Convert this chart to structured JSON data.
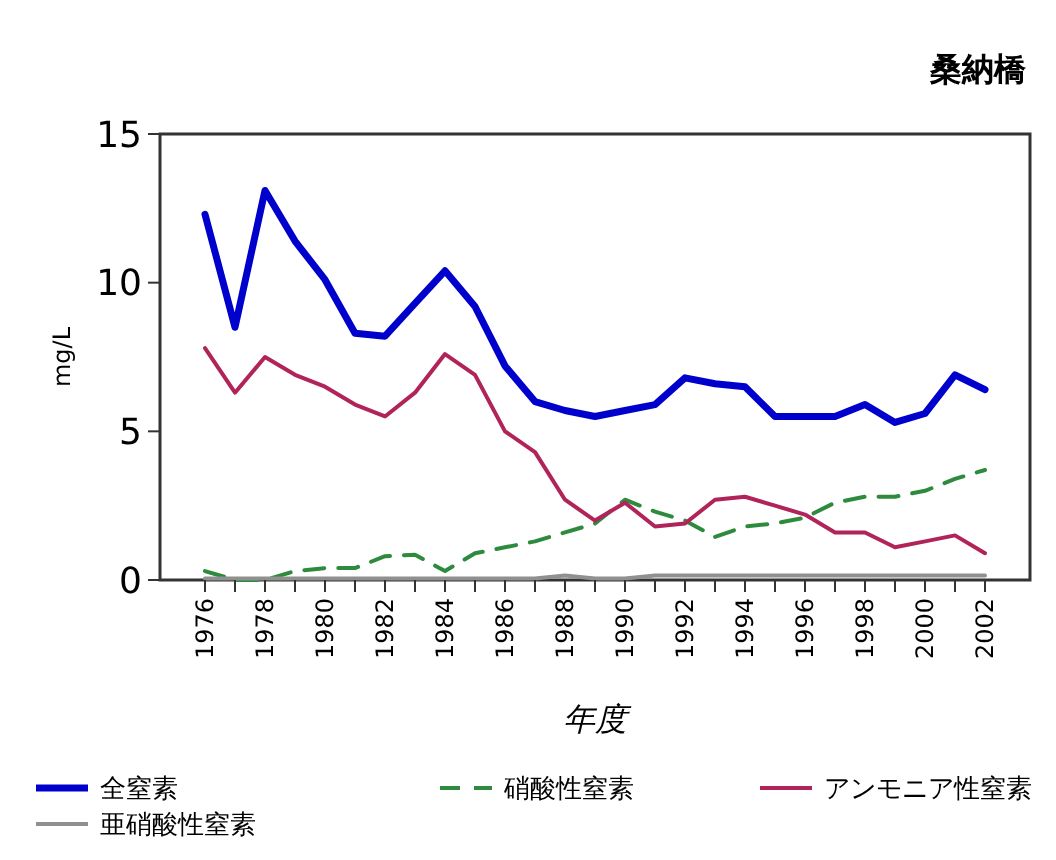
{
  "chart_data": {
    "type": "line",
    "title": "桑納橋",
    "xlabel": "年度",
    "ylabel": "mg/L",
    "x": [
      1976,
      1977,
      1978,
      1979,
      1980,
      1981,
      1982,
      1983,
      1984,
      1985,
      1986,
      1987,
      1988,
      1989,
      1990,
      1991,
      1992,
      1993,
      1994,
      1995,
      1996,
      1997,
      1998,
      1999,
      2000,
      2001,
      2002
    ],
    "series": [
      {
        "name": "全窒素",
        "color": "#0000cc",
        "line_style": "solid",
        "values": [
          12.3,
          8.5,
          13.1,
          11.4,
          10.1,
          8.3,
          8.2,
          9.3,
          10.4,
          9.2,
          7.2,
          6.0,
          5.7,
          5.5,
          5.7,
          5.9,
          6.8,
          6.6,
          6.5,
          5.5,
          5.5,
          5.5,
          5.9,
          5.3,
          5.6,
          6.9,
          6.4
        ]
      },
      {
        "name": "硝酸性窒素",
        "color": "#2e8b3e",
        "line_style": "dashed",
        "values": [
          0.3,
          0,
          0,
          0.3,
          0.4,
          0.4,
          0.8,
          0.85,
          0.3,
          0.9,
          1.1,
          1.3,
          1.6,
          1.9,
          2.7,
          2.3,
          2.0,
          1.45,
          1.8,
          1.9,
          2.1,
          2.6,
          2.8,
          2.8,
          3.0,
          3.4,
          3.7
        ]
      },
      {
        "name": "アンモニア性窒素",
        "color": "#b0245a",
        "line_style": "solid",
        "values": [
          7.8,
          6.3,
          7.5,
          6.9,
          6.5,
          5.9,
          5.5,
          6.3,
          7.6,
          6.9,
          5.0,
          4.3,
          2.7,
          2.0,
          2.6,
          1.8,
          1.9,
          2.7,
          2.8,
          2.5,
          2.2,
          1.6,
          1.6,
          1.1,
          1.3,
          1.5,
          0.9
        ]
      },
      {
        "name": "亜硝酸性窒素",
        "color": "#909090",
        "line_style": "solid",
        "values": [
          0.05,
          0.05,
          0.05,
          0.05,
          0.05,
          0.05,
          0.05,
          0.05,
          0.05,
          0.05,
          0.05,
          0.05,
          0.15,
          0.05,
          0.05,
          0.15,
          0.15,
          0.15,
          0.15,
          0.15,
          0.15,
          0.15,
          0.15,
          0.15,
          0.15,
          0.15,
          0.15
        ]
      }
    ],
    "xlim": [
      1974.5,
      2003.5
    ],
    "ylim": [
      0,
      15
    ],
    "yticks": [
      0,
      5,
      10,
      15
    ],
    "xticks": [
      1976,
      {
        "value": 1977,
        "label": null
      },
      1978,
      {
        "value": 1979,
        "label": null
      },
      1980,
      {
        "value": 1981,
        "label": null
      },
      1982,
      {
        "value": 1983,
        "label": null
      },
      1984,
      {
        "value": 1985,
        "label": null
      },
      1986,
      {
        "value": 1987,
        "label": null
      },
      1988,
      {
        "value": 1989,
        "label": null
      },
      1990,
      {
        "value": 1991,
        "label": null
      },
      1992,
      {
        "value": 1993,
        "label": null
      },
      1994,
      {
        "value": 1995,
        "label": null
      },
      1996,
      {
        "value": 1997,
        "label": null
      },
      1998,
      {
        "value": 1999,
        "label": null
      },
      2000,
      {
        "value": 2001,
        "label": null
      },
      2002
    ],
    "grid": false,
    "legend": "bottom"
  }
}
